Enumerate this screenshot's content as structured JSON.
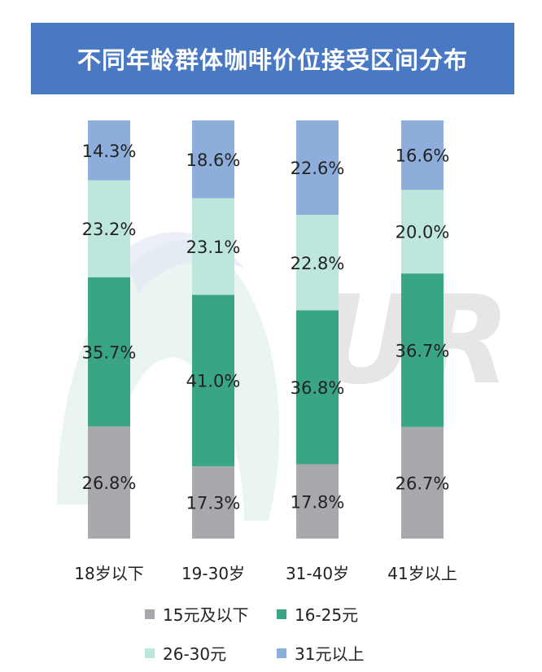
{
  "chart_data": {
    "type": "bar",
    "stacked": true,
    "title": "不同年龄群体咖啡价位接受区间分布",
    "categories": [
      "18岁以下",
      "19-30岁",
      "31-40岁",
      "41岁以上"
    ],
    "series": [
      {
        "name": "15元及以下",
        "color": "#a8a9ad",
        "values": [
          26.8,
          17.3,
          17.8,
          26.7
        ],
        "labels": [
          "26.8%",
          "17.3%",
          "17.8%",
          "26.7%"
        ]
      },
      {
        "name": "16-25元",
        "color": "#3aa585",
        "values": [
          35.7,
          41.0,
          36.8,
          36.7
        ],
        "labels": [
          "35.7%",
          "41.0%",
          "36.8%",
          "36.7%"
        ]
      },
      {
        "name": "26-30元",
        "color": "#bde6dc",
        "values": [
          23.2,
          23.1,
          22.8,
          20.0
        ],
        "labels": [
          "23.2%",
          "23.1%",
          "22.8%",
          "20.0%"
        ]
      },
      {
        "name": "31元以上",
        "color": "#8daedb",
        "values": [
          14.3,
          18.6,
          22.6,
          16.6
        ],
        "labels": [
          "14.3%",
          "18.6%",
          "22.6%",
          "16.6%"
        ]
      }
    ],
    "ylim": [
      0,
      100
    ],
    "grid": false,
    "legend_position": "bottom"
  },
  "watermark_text": "UR"
}
